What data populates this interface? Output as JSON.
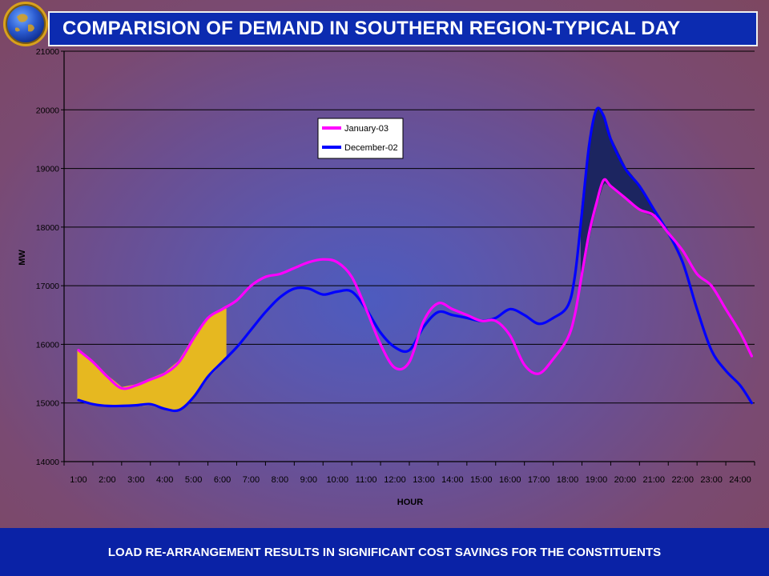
{
  "header": {
    "title": "COMPARISION OF DEMAND IN SOUTHERN REGION-TYPICAL DAY"
  },
  "footer": {
    "text": "LOAD RE-ARRANGEMENT RESULTS IN SIGNIFICANT COST SAVINGS FOR THE CONSTITUENTS"
  },
  "colors": {
    "title_bar": "#0c2bb0",
    "footer_bar": "#0a22a6",
    "series_jan": "#ff00ff",
    "series_dec": "#0000ff",
    "valley_fill": "#e6b820",
    "peak_fill": "#1c2560"
  },
  "chart_data": {
    "type": "line",
    "xlabel": "HOUR",
    "ylabel": "MW",
    "ylim": [
      14000,
      21000
    ],
    "yticks": [
      14000,
      15000,
      16000,
      17000,
      18000,
      19000,
      20000,
      21000
    ],
    "categories": [
      "1:00",
      "2:00",
      "3:00",
      "4:00",
      "5:00",
      "6:00",
      "7:00",
      "8:00",
      "9:00",
      "10:00",
      "11:00",
      "12:00",
      "13:00",
      "14:00",
      "15:00",
      "16:00",
      "17:00",
      "18:00",
      "19:00",
      "20:00",
      "21:00",
      "22:00",
      "23:00",
      "24:00"
    ],
    "grid": true,
    "legend": "upper-middle",
    "series": [
      {
        "name": "January-03",
        "color": "#ff00ff",
        "x": [
          1,
          1.5,
          2,
          2.5,
          3,
          3.5,
          4,
          4.5,
          5,
          5.5,
          6,
          6.5,
          7,
          7.5,
          8,
          8.5,
          9,
          9.5,
          10,
          10.5,
          11,
          11.5,
          12,
          12.5,
          13,
          13.5,
          14,
          14.5,
          15,
          15.5,
          16,
          16.5,
          17,
          17.5,
          18,
          18.25,
          18.5,
          18.75,
          19,
          19.25,
          19.5,
          20,
          20.5,
          21,
          21.5,
          22,
          22.5,
          23,
          23.5,
          24,
          24.4
        ],
        "values": [
          15900,
          15700,
          15450,
          15250,
          15300,
          15400,
          15500,
          15700,
          16100,
          16450,
          16600,
          16750,
          17000,
          17150,
          17200,
          17300,
          17400,
          17450,
          17400,
          17150,
          16600,
          16000,
          15600,
          15700,
          16400,
          16700,
          16600,
          16500,
          16400,
          16400,
          16150,
          15650,
          15500,
          15750,
          16100,
          16500,
          17200,
          17900,
          18400,
          18800,
          18700,
          18500,
          18300,
          18200,
          17900,
          17600,
          17200,
          17000,
          16600,
          16200,
          15800
        ]
      },
      {
        "name": "December-02",
        "color": "#0000ff",
        "x": [
          1,
          1.5,
          2,
          2.5,
          3,
          3.5,
          4,
          4.5,
          5,
          5.5,
          6,
          6.5,
          7,
          7.5,
          8,
          8.5,
          9,
          9.5,
          10,
          10.5,
          11,
          11.5,
          12,
          12.5,
          13,
          13.5,
          14,
          14.5,
          15,
          15.5,
          16,
          16.5,
          17,
          17.5,
          18,
          18.25,
          18.5,
          18.75,
          19,
          19.25,
          19.5,
          20,
          20.5,
          21,
          21.5,
          22,
          22.5,
          23,
          23.5,
          24,
          24.4
        ],
        "values": [
          15050,
          14980,
          14950,
          14950,
          14960,
          14980,
          14900,
          14880,
          15100,
          15450,
          15700,
          15950,
          16250,
          16550,
          16800,
          16950,
          16950,
          16850,
          16900,
          16900,
          16600,
          16200,
          15950,
          15900,
          16300,
          16550,
          16500,
          16450,
          16400,
          16450,
          16600,
          16500,
          16350,
          16450,
          16650,
          17150,
          18250,
          19400,
          20000,
          19900,
          19500,
          19000,
          18700,
          18300,
          17900,
          17400,
          16600,
          15900,
          15550,
          15300,
          15000
        ]
      }
    ],
    "annotations": [
      {
        "type": "shaded-area",
        "name": "valley-fill",
        "x_range": [
          1,
          6.1
        ],
        "color": "#e6b820"
      },
      {
        "type": "shaded-area",
        "name": "peak-fill",
        "x_range": [
          18.5,
          21
        ],
        "color": "#1c2560"
      }
    ]
  }
}
